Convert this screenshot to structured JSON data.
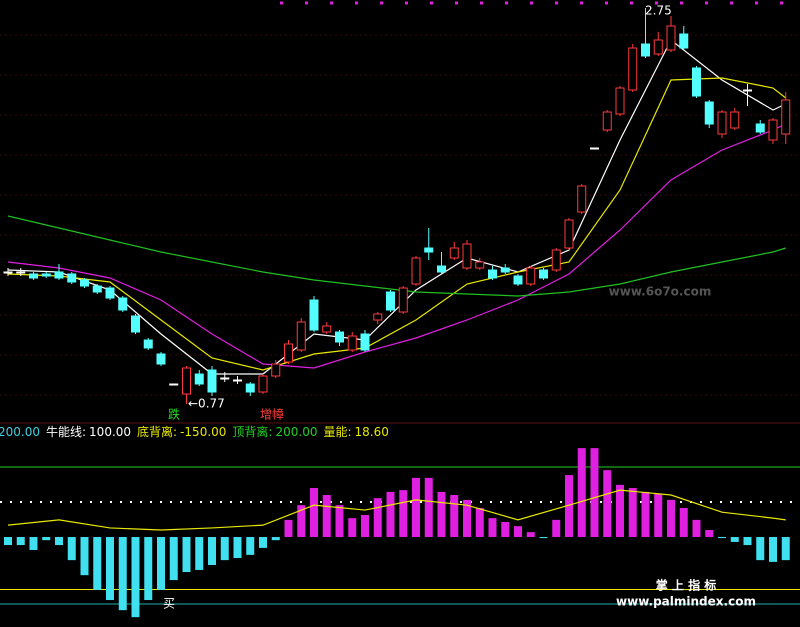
{
  "chart_data": [
    {
      "type": "candlestick",
      "ylim": [
        0.69,
        2.79
      ],
      "up_color": "#ff3b3b",
      "down_color": "#54ffff",
      "flat_color": "#ffffff",
      "candles": [
        [
          1.43,
          1.45,
          1.41,
          1.43
        ],
        [
          1.43,
          1.45,
          1.41,
          1.43
        ],
        [
          1.42,
          1.43,
          1.39,
          1.4
        ],
        [
          1.42,
          1.43,
          1.4,
          1.41
        ],
        [
          1.43,
          1.47,
          1.39,
          1.4
        ],
        [
          1.42,
          1.43,
          1.37,
          1.38
        ],
        [
          1.39,
          1.4,
          1.35,
          1.36
        ],
        [
          1.36,
          1.37,
          1.32,
          1.33
        ],
        [
          1.35,
          1.36,
          1.29,
          1.3
        ],
        [
          1.3,
          1.31,
          1.23,
          1.24
        ],
        [
          1.21,
          1.22,
          1.12,
          1.13
        ],
        [
          1.09,
          1.1,
          1.04,
          1.05
        ],
        [
          1.02,
          1.03,
          0.96,
          0.97
        ],
        [
          0.87,
          0.87,
          0.87,
          0.87
        ],
        [
          0.82,
          0.96,
          0.77,
          0.95
        ],
        [
          0.92,
          0.94,
          0.86,
          0.87
        ],
        [
          0.94,
          0.96,
          0.81,
          0.83
        ],
        [
          0.9,
          0.93,
          0.88,
          0.9
        ],
        [
          0.89,
          0.91,
          0.87,
          0.89
        ],
        [
          0.87,
          0.88,
          0.81,
          0.83
        ],
        [
          0.83,
          0.92,
          0.82,
          0.91
        ],
        [
          0.91,
          0.99,
          0.9,
          0.97
        ],
        [
          0.98,
          1.09,
          0.97,
          1.07
        ],
        [
          1.04,
          1.2,
          1.03,
          1.18
        ],
        [
          1.29,
          1.31,
          1.13,
          1.14
        ],
        [
          1.13,
          1.18,
          1.12,
          1.16
        ],
        [
          1.13,
          1.14,
          1.06,
          1.08
        ],
        [
          1.04,
          1.13,
          1.03,
          1.11
        ],
        [
          1.12,
          1.14,
          1.03,
          1.04
        ],
        [
          1.19,
          1.23,
          1.17,
          1.22
        ],
        [
          1.33,
          1.34,
          1.23,
          1.24
        ],
        [
          1.23,
          1.36,
          1.22,
          1.35
        ],
        [
          1.37,
          1.51,
          1.36,
          1.5
        ],
        [
          1.55,
          1.65,
          1.49,
          1.53
        ],
        [
          1.46,
          1.53,
          1.42,
          1.43
        ],
        [
          1.5,
          1.58,
          1.49,
          1.55
        ],
        [
          1.45,
          1.59,
          1.44,
          1.57
        ],
        [
          1.45,
          1.5,
          1.44,
          1.48
        ],
        [
          1.44,
          1.46,
          1.39,
          1.4
        ],
        [
          1.45,
          1.47,
          1.42,
          1.43
        ],
        [
          1.41,
          1.42,
          1.36,
          1.37
        ],
        [
          1.37,
          1.46,
          1.36,
          1.45
        ],
        [
          1.44,
          1.45,
          1.39,
          1.4
        ],
        [
          1.44,
          1.55,
          1.43,
          1.54
        ],
        [
          1.55,
          1.7,
          1.54,
          1.69
        ],
        [
          1.73,
          1.87,
          1.72,
          1.86
        ],
        [
          2.05,
          2.05,
          2.05,
          2.05
        ],
        [
          2.14,
          2.24,
          2.13,
          2.23
        ],
        [
          2.22,
          2.36,
          2.21,
          2.35
        ],
        [
          2.34,
          2.57,
          2.33,
          2.55
        ],
        [
          2.57,
          2.75,
          2.5,
          2.51
        ],
        [
          2.52,
          2.63,
          2.51,
          2.59
        ],
        [
          2.54,
          2.71,
          2.53,
          2.66
        ],
        [
          2.62,
          2.66,
          2.54,
          2.55
        ],
        [
          2.45,
          2.46,
          2.3,
          2.31
        ],
        [
          2.28,
          2.29,
          2.15,
          2.17
        ],
        [
          2.12,
          2.24,
          2.1,
          2.23
        ],
        [
          2.15,
          2.25,
          2.14,
          2.23
        ],
        [
          2.34,
          2.37,
          2.26,
          2.34
        ],
        [
          2.17,
          2.19,
          2.12,
          2.13
        ],
        [
          2.09,
          2.2,
          2.07,
          2.19
        ],
        [
          2.12,
          2.33,
          2.07,
          2.29
        ]
      ],
      "series": [
        {
          "color": "#ffffff",
          "x": [
            0,
            4,
            8,
            12,
            16,
            20,
            24,
            28,
            32,
            36,
            40,
            44,
            48,
            52,
            56,
            60,
            61
          ],
          "values": [
            1.44,
            1.43,
            1.34,
            1.12,
            0.92,
            0.92,
            1.12,
            1.09,
            1.34,
            1.5,
            1.43,
            1.54,
            2.09,
            2.59,
            2.39,
            2.24,
            2.27
          ]
        },
        {
          "color": "#e8e800",
          "x": [
            0,
            4,
            8,
            12,
            16,
            20,
            24,
            28,
            32,
            36,
            40,
            44,
            48,
            52,
            56,
            60,
            61
          ],
          "values": [
            1.42,
            1.41,
            1.38,
            1.19,
            1.0,
            0.94,
            1.02,
            1.05,
            1.19,
            1.37,
            1.43,
            1.48,
            1.84,
            2.39,
            2.4,
            2.35,
            2.3
          ]
        },
        {
          "color": "#e020e0",
          "x": [
            0,
            4,
            8,
            12,
            16,
            20,
            24,
            28,
            32,
            36,
            40,
            44,
            48,
            52,
            56,
            60,
            61
          ],
          "values": [
            1.48,
            1.45,
            1.4,
            1.29,
            1.12,
            0.97,
            0.95,
            1.03,
            1.1,
            1.19,
            1.29,
            1.42,
            1.64,
            1.89,
            2.04,
            2.14,
            2.17
          ]
        },
        {
          "color": "#20c020",
          "x": [
            0,
            4,
            8,
            12,
            16,
            20,
            24,
            28,
            32,
            36,
            40,
            44,
            48,
            52,
            56,
            60,
            61
          ],
          "values": [
            1.71,
            1.65,
            1.59,
            1.53,
            1.48,
            1.43,
            1.39,
            1.36,
            1.33,
            1.32,
            1.31,
            1.33,
            1.37,
            1.43,
            1.48,
            1.53,
            1.55
          ]
        }
      ]
    },
    {
      "type": "bar",
      "ylim": [
        -257,
        320
      ],
      "pos_color": "#e020e0",
      "neg_color": "#40e0f0",
      "values": [
        -23,
        -23,
        -37,
        -9,
        -23,
        -66,
        -109,
        -151,
        -180,
        -209,
        -229,
        -180,
        -151,
        -123,
        -100,
        -94,
        -80,
        -66,
        -60,
        -51,
        -31,
        -9,
        49,
        91,
        140,
        120,
        91,
        54,
        63,
        111,
        129,
        134,
        169,
        169,
        129,
        120,
        106,
        83,
        54,
        43,
        31,
        14,
        -3,
        49,
        177,
        254,
        254,
        191,
        149,
        140,
        129,
        123,
        106,
        83,
        49,
        20,
        -3,
        -14,
        -23,
        -66,
        -71,
        -66
      ],
      "series": [
        {
          "color": "#e8e800",
          "x": [
            0,
            4,
            8,
            12,
            16,
            20,
            24,
            28,
            32,
            36,
            40,
            44,
            48,
            52,
            56,
            60,
            61
          ],
          "values": [
            34,
            49,
            26,
            20,
            26,
            34,
            91,
            77,
            106,
            91,
            49,
            91,
            134,
            120,
            71,
            54,
            49
          ]
        }
      ],
      "legend": [
        {
          "value": 200,
          "value_label": "200.00",
          "color": "#40d0e0"
        },
        {
          "name": "牛能线:",
          "value": 100,
          "value_label": "100.00",
          "color": "#ffffff",
          "line": "dotted"
        },
        {
          "name": "底背离:",
          "value": -150,
          "value_label": "-150.00",
          "color": "#e8e800",
          "line": "solid"
        },
        {
          "name": "顶背离:",
          "value": 200,
          "value_label": "200.00",
          "color": "#20d020",
          "line": "solid"
        },
        {
          "name": "量能:",
          "value": 18.6,
          "value_label": "18.60",
          "color": "#e8e800"
        }
      ]
    }
  ],
  "annotations": [
    "2.75",
    "←0.77",
    "跌",
    "增幛",
    "买"
  ],
  "watermarks": [
    "www.6o7o.com",
    "掌 上 指 标",
    "www.palmindex.com"
  ]
}
